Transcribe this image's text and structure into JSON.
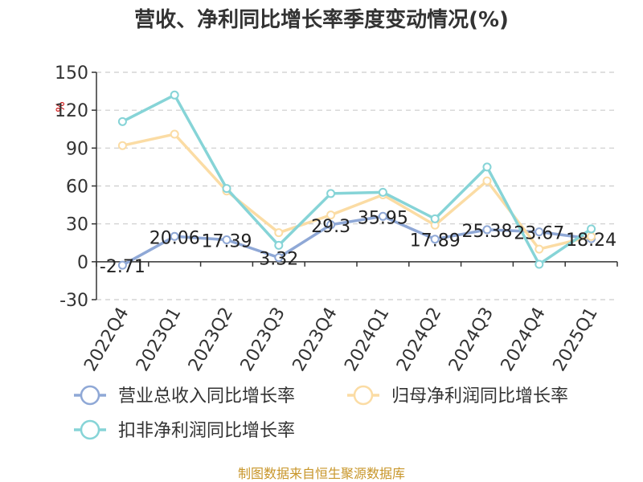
{
  "chart_data": {
    "type": "line",
    "title": "营收、净利同比增长率季度变动情况(%)",
    "ylabel": "%",
    "categories": [
      "2022Q4",
      "2023Q1",
      "2023Q2",
      "2023Q3",
      "2023Q4",
      "2024Q1",
      "2024Q2",
      "2024Q3",
      "2024Q4",
      "2025Q1"
    ],
    "ylim": [
      -30,
      150
    ],
    "yticks": [
      -30,
      0,
      30,
      60,
      90,
      120,
      150
    ],
    "grid": true,
    "legend_position": "bottom",
    "series": [
      {
        "name": "营业总收入同比增长率",
        "color": "#8fa8d6",
        "values": [
          -2.71,
          20.06,
          17.39,
          3.32,
          29.3,
          35.95,
          17.89,
          25.38,
          23.67,
          18.24
        ],
        "labels": [
          "-2.71",
          "20.06",
          "17.39",
          "3.32",
          "29.3",
          "35.95",
          "17.89",
          "25.38",
          "23.67",
          "18.24"
        ]
      },
      {
        "name": "归母净利润同比增长率",
        "color": "#fbdca4",
        "values": [
          92,
          101,
          56,
          23,
          37,
          53,
          29,
          64,
          10,
          20
        ]
      },
      {
        "name": "扣非净利润同比增长率",
        "color": "#86d4d7",
        "values": [
          111,
          132,
          58,
          13,
          54,
          55,
          34,
          75,
          -2,
          26
        ]
      }
    ]
  },
  "footer": "制图数据来自恒生聚源数据库"
}
